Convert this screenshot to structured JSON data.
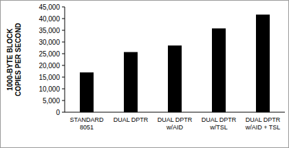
{
  "chart_data": {
    "type": "bar",
    "y_label": "1000-BYTE BLOCK\nCOPIES PER SECOND",
    "categories": [
      "STANDARD\n8051",
      "DUAL DPTR",
      "DUAL DPTR\nw/AID",
      "DUAL DPTR\nw/TSL",
      "DUAL DPTR\nw/AID + TSL"
    ],
    "values": [
      17000,
      25700,
      28500,
      35800,
      41700
    ],
    "color": "#000000",
    "ylim": [
      0,
      45000
    ],
    "yticks": [
      0,
      {
        "value": 5000,
        "label": "5,000"
      },
      {
        "value": 10000,
        "label": "10,000"
      },
      {
        "value": 15000,
        "label": "15,000"
      },
      {
        "value": 20000,
        "label": "20,000"
      },
      {
        "value": 25000,
        "label": "25,000"
      },
      {
        "value": 30000,
        "label": "30,000"
      },
      {
        "value": 35000,
        "label": "35,000"
      },
      {
        "value": 40000,
        "label": "40,000"
      },
      {
        "value": 45000,
        "label": "45,000"
      }
    ],
    "grid": false
  }
}
